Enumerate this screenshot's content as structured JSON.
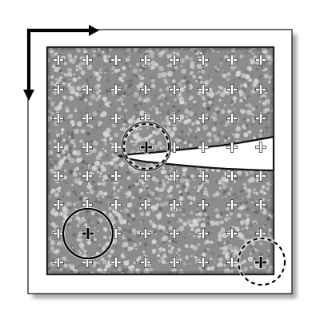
{
  "diagram": {
    "kind": "DIC speckle specimen with crack and subset regions",
    "colors": {
      "background": "#ffffff",
      "frame_fill": "#ffffff",
      "frame_stroke": "#111111",
      "shadow": "#8f8f8f",
      "specimen_base": "#8c8c8c",
      "specimen_dark": "#5a5a5a",
      "speckle_light": "#d7d7d7",
      "speckle_dark": "#505050",
      "edge": "#222222",
      "grid_marker": "#ffffff",
      "grid_marker_outline": "#3a3a3a",
      "highlight_marker": "#000000",
      "highlight_outline": "#ffffff",
      "circle_stroke": "#000000",
      "axis": "#000000"
    },
    "grid": {
      "rows": 8,
      "columns": 8,
      "marker_symbol": "plus-icon"
    },
    "axes": {
      "x_arrow_icon": "arrow-right-icon",
      "y_arrow_icon": "arrow-down-icon"
    },
    "regions": [
      {
        "name": "crack-tip-region",
        "style": "solid+dashed",
        "grid_row": 3,
        "grid_col": 3
      },
      {
        "name": "left-lower-region",
        "style": "solid",
        "grid_row": 6,
        "grid_col": 1
      },
      {
        "name": "corner-region",
        "style": "dashed",
        "grid_row": 7,
        "grid_col": 7
      }
    ]
  }
}
